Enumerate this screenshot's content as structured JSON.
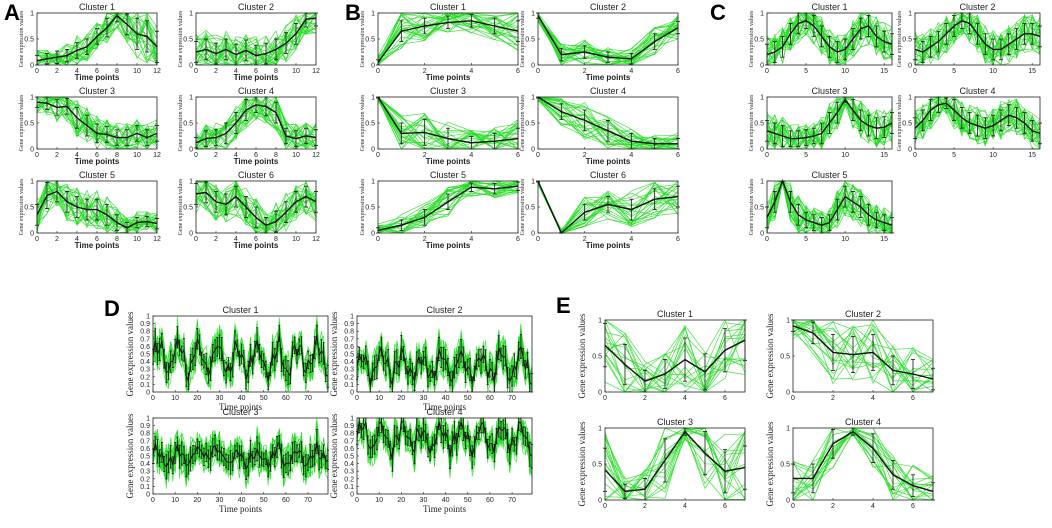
{
  "colors": {
    "profiles": "#22dd22",
    "mean": "#111111",
    "errorbar": "#111111",
    "frame": "#222222"
  },
  "chart_data": [
    {
      "panel": "A",
      "type": "line",
      "xlabel": "Time points",
      "ylabel": "Gene expression values",
      "xlim": [
        0,
        12
      ],
      "ylim": [
        0,
        1
      ],
      "xticks": [
        0,
        2,
        4,
        6,
        8,
        10,
        12
      ],
      "yticks": [
        0,
        0.5,
        1
      ],
      "clusters": [
        {
          "title": "Cluster 1",
          "x": [
            0,
            1,
            2,
            3,
            4,
            5,
            6,
            7,
            8,
            9,
            10,
            11,
            12
          ],
          "mean": [
            0.08,
            0.12,
            0.15,
            0.18,
            0.28,
            0.35,
            0.55,
            0.72,
            0.95,
            0.78,
            0.6,
            0.55,
            0.35
          ],
          "err": [
            0.1,
            0.1,
            0.12,
            0.12,
            0.15,
            0.15,
            0.15,
            0.18,
            0.12,
            0.2,
            0.3,
            0.3,
            0.3
          ]
        },
        {
          "title": "Cluster 2",
          "x": [
            0,
            1,
            2,
            3,
            4,
            5,
            6,
            7,
            8,
            9,
            10,
            11,
            12
          ],
          "mean": [
            0.25,
            0.3,
            0.22,
            0.3,
            0.2,
            0.28,
            0.18,
            0.22,
            0.3,
            0.42,
            0.6,
            0.88,
            0.9
          ],
          "err": [
            0.2,
            0.2,
            0.2,
            0.2,
            0.2,
            0.2,
            0.2,
            0.2,
            0.2,
            0.2,
            0.2,
            0.15,
            0.15
          ]
        },
        {
          "title": "Cluster 3",
          "x": [
            0,
            1,
            2,
            3,
            4,
            5,
            6,
            7,
            8,
            9,
            10,
            11,
            12
          ],
          "mean": [
            0.9,
            0.88,
            0.8,
            0.82,
            0.6,
            0.45,
            0.3,
            0.28,
            0.22,
            0.22,
            0.3,
            0.22,
            0.3
          ],
          "err": [
            0.1,
            0.12,
            0.15,
            0.15,
            0.2,
            0.2,
            0.18,
            0.15,
            0.15,
            0.15,
            0.15,
            0.15,
            0.15
          ]
        },
        {
          "title": "Cluster 4",
          "x": [
            0,
            1,
            2,
            3,
            4,
            5,
            6,
            7,
            8,
            9,
            10,
            11,
            12
          ],
          "mean": [
            0.12,
            0.2,
            0.22,
            0.3,
            0.5,
            0.75,
            0.85,
            0.82,
            0.7,
            0.25,
            0.2,
            0.25,
            0.22
          ],
          "err": [
            0.1,
            0.15,
            0.15,
            0.2,
            0.2,
            0.2,
            0.15,
            0.18,
            0.2,
            0.15,
            0.15,
            0.15,
            0.15
          ]
        },
        {
          "title": "Cluster 5",
          "x": [
            0,
            1,
            2,
            3,
            4,
            5,
            6,
            7,
            8,
            9,
            10,
            11,
            12
          ],
          "mean": [
            0.35,
            0.72,
            0.8,
            0.6,
            0.5,
            0.45,
            0.45,
            0.35,
            0.2,
            0.1,
            0.2,
            0.22,
            0.18
          ],
          "err": [
            0.2,
            0.25,
            0.2,
            0.2,
            0.2,
            0.2,
            0.2,
            0.2,
            0.15,
            0.1,
            0.1,
            0.1,
            0.1
          ]
        },
        {
          "title": "Cluster 6",
          "x": [
            0,
            1,
            2,
            3,
            4,
            5,
            6,
            7,
            8,
            9,
            10,
            11,
            12
          ],
          "mean": [
            0.75,
            0.78,
            0.6,
            0.55,
            0.7,
            0.5,
            0.3,
            0.15,
            0.22,
            0.4,
            0.6,
            0.7,
            0.6
          ],
          "err": [
            0.2,
            0.2,
            0.2,
            0.2,
            0.2,
            0.2,
            0.2,
            0.15,
            0.2,
            0.2,
            0.2,
            0.2,
            0.2
          ]
        }
      ]
    },
    {
      "panel": "B",
      "type": "line",
      "xlabel": "Time points",
      "ylabel": "Gene expression values",
      "xlim": [
        0,
        6
      ],
      "ylim": [
        0,
        1
      ],
      "xticks": [
        0,
        2,
        4,
        6
      ],
      "yticks": [
        0,
        0.5,
        1
      ],
      "clusters": [
        {
          "title": "Cluster 1",
          "x": [
            0,
            1,
            2,
            3,
            4,
            5,
            6
          ],
          "mean": [
            0.05,
            0.65,
            0.75,
            0.82,
            0.85,
            0.75,
            0.65
          ],
          "err": [
            0.05,
            0.2,
            0.15,
            0.12,
            0.12,
            0.15,
            0.2
          ]
        },
        {
          "title": "Cluster 2",
          "x": [
            0,
            1,
            2,
            3,
            4,
            5,
            6
          ],
          "mean": [
            0.95,
            0.2,
            0.25,
            0.15,
            0.12,
            0.45,
            0.72
          ],
          "err": [
            0.05,
            0.12,
            0.12,
            0.1,
            0.1,
            0.15,
            0.12
          ]
        },
        {
          "title": "Cluster 3",
          "x": [
            0,
            1,
            2,
            3,
            4,
            5,
            6
          ],
          "mean": [
            1.0,
            0.3,
            0.32,
            0.2,
            0.12,
            0.15,
            0.2
          ],
          "err": [
            0.02,
            0.2,
            0.25,
            0.2,
            0.12,
            0.15,
            0.2
          ]
        },
        {
          "title": "Cluster 4",
          "x": [
            0,
            1,
            2,
            3,
            4,
            5,
            6
          ],
          "mean": [
            1.0,
            0.72,
            0.55,
            0.35,
            0.15,
            0.1,
            0.1
          ],
          "err": [
            0.02,
            0.15,
            0.2,
            0.2,
            0.15,
            0.1,
            0.1
          ]
        },
        {
          "title": "Cluster 5",
          "x": [
            0,
            1,
            2,
            3,
            4,
            5,
            6
          ],
          "mean": [
            0.05,
            0.15,
            0.3,
            0.6,
            0.88,
            0.85,
            0.9
          ],
          "err": [
            0.05,
            0.1,
            0.15,
            0.15,
            0.08,
            0.1,
            0.08
          ]
        },
        {
          "title": "Cluster 6",
          "x": [
            0,
            1,
            2,
            3,
            4,
            5,
            6
          ],
          "mean": [
            1.0,
            0.0,
            0.4,
            0.55,
            0.45,
            0.65,
            0.7
          ],
          "err": [
            0.02,
            0.02,
            0.15,
            0.15,
            0.2,
            0.2,
            0.2
          ]
        }
      ]
    },
    {
      "panel": "C",
      "type": "line",
      "xlabel": "",
      "ylabel": "Gene expression values",
      "xlim": [
        0,
        16
      ],
      "ylim": [
        0,
        1
      ],
      "xticks": [
        0,
        5,
        10,
        15
      ],
      "yticks": [
        0,
        0.5,
        1
      ],
      "clusters": [
        {
          "title": "Cluster 1",
          "x": [
            0,
            1,
            2,
            3,
            4,
            5,
            6,
            7,
            8,
            9,
            10,
            11,
            12,
            13,
            14,
            15,
            16
          ],
          "mean": [
            0.2,
            0.25,
            0.35,
            0.6,
            0.8,
            0.85,
            0.75,
            0.55,
            0.35,
            0.25,
            0.3,
            0.5,
            0.7,
            0.75,
            0.55,
            0.45,
            0.4
          ],
          "err": [
            0.2,
            0.2,
            0.2,
            0.2,
            0.2,
            0.15,
            0.2,
            0.2,
            0.2,
            0.2,
            0.2,
            0.2,
            0.2,
            0.2,
            0.2,
            0.2,
            0.2
          ]
        },
        {
          "title": "Cluster 2",
          "x": [
            0,
            1,
            2,
            3,
            4,
            5,
            6,
            7,
            8,
            9,
            10,
            11,
            12,
            13,
            14,
            15,
            16
          ],
          "mean": [
            0.3,
            0.25,
            0.35,
            0.45,
            0.6,
            0.75,
            0.85,
            0.8,
            0.6,
            0.4,
            0.3,
            0.3,
            0.4,
            0.5,
            0.6,
            0.6,
            0.55
          ],
          "err": [
            0.2,
            0.2,
            0.2,
            0.2,
            0.2,
            0.2,
            0.15,
            0.2,
            0.2,
            0.2,
            0.2,
            0.2,
            0.2,
            0.2,
            0.2,
            0.2,
            0.2
          ]
        },
        {
          "title": "Cluster 3",
          "x": [
            0,
            1,
            2,
            3,
            4,
            5,
            6,
            7,
            8,
            9,
            10,
            11,
            12,
            13,
            14,
            15,
            16
          ],
          "mean": [
            0.35,
            0.3,
            0.25,
            0.2,
            0.2,
            0.22,
            0.25,
            0.3,
            0.5,
            0.7,
            0.95,
            0.75,
            0.55,
            0.45,
            0.4,
            0.42,
            0.5
          ],
          "err": [
            0.2,
            0.2,
            0.2,
            0.15,
            0.15,
            0.15,
            0.15,
            0.2,
            0.2,
            0.2,
            0.05,
            0.2,
            0.2,
            0.2,
            0.2,
            0.2,
            0.2
          ]
        },
        {
          "title": "Cluster 4",
          "x": [
            0,
            1,
            2,
            3,
            4,
            5,
            6,
            7,
            8,
            9,
            10,
            11,
            12,
            13,
            14,
            15,
            16
          ],
          "mean": [
            0.4,
            0.55,
            0.75,
            0.85,
            0.88,
            0.75,
            0.6,
            0.5,
            0.45,
            0.4,
            0.45,
            0.55,
            0.65,
            0.6,
            0.5,
            0.35,
            0.3
          ],
          "err": [
            0.2,
            0.2,
            0.2,
            0.15,
            0.1,
            0.2,
            0.2,
            0.2,
            0.2,
            0.2,
            0.2,
            0.2,
            0.2,
            0.2,
            0.2,
            0.2,
            0.2
          ]
        },
        {
          "title": "Cluster 5",
          "x": [
            0,
            1,
            2,
            3,
            4,
            5,
            6,
            7,
            8,
            9,
            10,
            11,
            12,
            13,
            14,
            15,
            16
          ],
          "mean": [
            0.3,
            0.6,
            1.0,
            0.6,
            0.35,
            0.25,
            0.2,
            0.15,
            0.2,
            0.45,
            0.7,
            0.6,
            0.5,
            0.35,
            0.25,
            0.2,
            0.15
          ],
          "err": [
            0.2,
            0.2,
            0.02,
            0.2,
            0.2,
            0.15,
            0.15,
            0.15,
            0.15,
            0.2,
            0.2,
            0.2,
            0.2,
            0.2,
            0.15,
            0.15,
            0.15
          ]
        }
      ]
    },
    {
      "panel": "D",
      "type": "line",
      "xlabel": "Time points",
      "ylabel": "Gene expression values",
      "xlim": [
        0,
        79
      ],
      "ylim": [
        0,
        1
      ],
      "xticks": [
        0,
        10,
        20,
        30,
        40,
        50,
        60,
        70
      ],
      "yticks": [
        0,
        0.1,
        0.2,
        0.3,
        0.4,
        0.5,
        0.6,
        0.7,
        0.8,
        0.9,
        1
      ],
      "clusters": [
        {
          "title": "Cluster 1",
          "npoints": 80,
          "mean_level": 0.45,
          "amplitude": 0.3
        },
        {
          "title": "Cluster 2",
          "npoints": 80,
          "mean_level": 0.35,
          "amplitude": 0.25
        },
        {
          "title": "Cluster 3",
          "npoints": 80,
          "mean_level": 0.5,
          "amplitude": 0.15
        },
        {
          "title": "Cluster 4",
          "npoints": 80,
          "mean_level": 0.75,
          "amplitude": 0.25
        }
      ]
    },
    {
      "panel": "E",
      "type": "line",
      "xlabel": "",
      "ylabel": "Gene expression values",
      "xlim": [
        0,
        7
      ],
      "ylim": [
        0,
        1
      ],
      "xticks": [
        0,
        2,
        4,
        6
      ],
      "yticks": [
        0,
        0.5,
        1
      ],
      "clusters": [
        {
          "title": "Cluster 1",
          "x": [
            0,
            1,
            2,
            3,
            4,
            5,
            6,
            7
          ],
          "mean": [
            0.65,
            0.38,
            0.15,
            0.25,
            0.45,
            0.28,
            0.58,
            0.72
          ],
          "err": [
            0.3,
            0.28,
            0.15,
            0.2,
            0.3,
            0.25,
            0.3,
            0.28
          ]
        },
        {
          "title": "Cluster 2",
          "x": [
            0,
            1,
            2,
            3,
            4,
            5,
            6,
            7
          ],
          "mean": [
            0.92,
            0.82,
            0.55,
            0.52,
            0.55,
            0.3,
            0.25,
            0.18
          ],
          "err": [
            0.08,
            0.15,
            0.25,
            0.25,
            0.25,
            0.2,
            0.2,
            0.15
          ]
        },
        {
          "title": "Cluster 3",
          "x": [
            0,
            1,
            2,
            3,
            4,
            5,
            6,
            7
          ],
          "mean": [
            0.42,
            0.12,
            0.15,
            0.55,
            0.95,
            0.65,
            0.4,
            0.45
          ],
          "err": [
            0.3,
            0.1,
            0.15,
            0.3,
            0.05,
            0.3,
            0.3,
            0.3
          ]
        },
        {
          "title": "Cluster 4",
          "x": [
            0,
            1,
            2,
            3,
            4,
            5,
            6,
            7
          ],
          "mean": [
            0.3,
            0.3,
            0.78,
            0.95,
            0.72,
            0.35,
            0.2,
            0.12
          ],
          "err": [
            0.2,
            0.2,
            0.2,
            0.05,
            0.2,
            0.2,
            0.15,
            0.12
          ]
        }
      ]
    }
  ]
}
